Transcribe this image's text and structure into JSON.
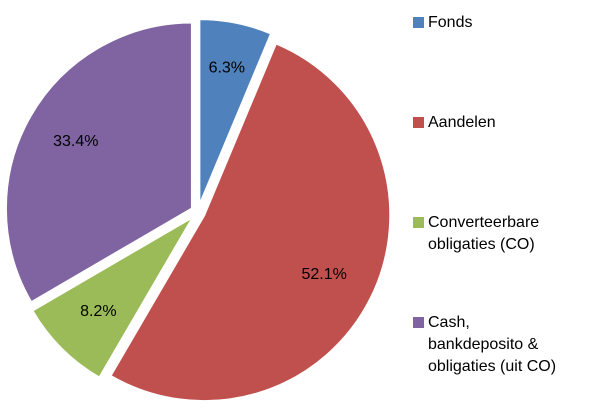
{
  "chart_data": {
    "type": "pie",
    "categories": [
      "Fonds",
      "Aandelen",
      "Converteerbare obligaties (CO)",
      "Cash, bankdeposito & obligaties (uit CO)"
    ],
    "values": [
      6.3,
      52.1,
      8.2,
      33.4
    ],
    "value_labels": [
      "6.3%",
      "52.1%",
      "8.2%",
      "33.4%"
    ],
    "colors": [
      "#4F81BD",
      "#C0504D",
      "#9BBB59",
      "#8064A2"
    ],
    "legend": "right"
  }
}
